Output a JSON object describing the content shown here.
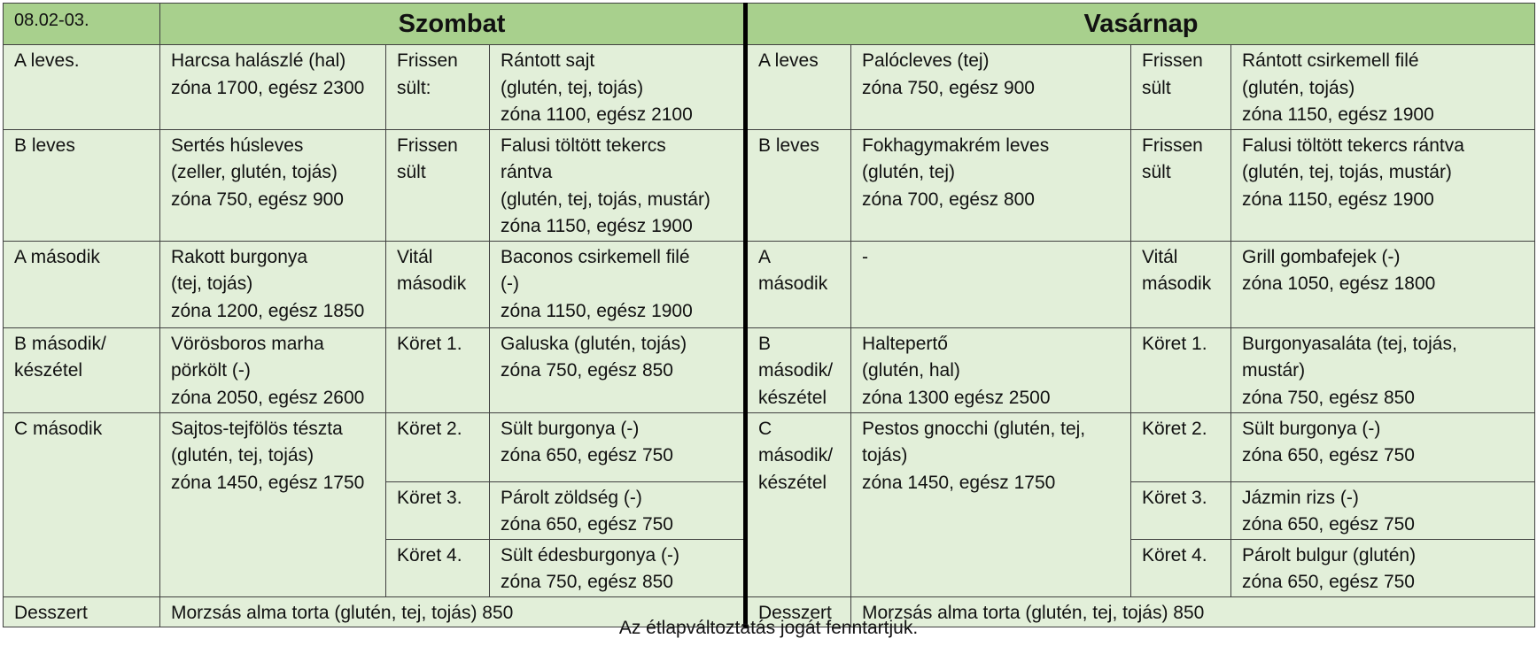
{
  "date": "08.02-03.",
  "days": [
    "Szombat",
    "Vasárnap"
  ],
  "rows": {
    "a_leves": {
      "sat_label": "A leves.",
      "sat_dish": [
        "Harcsa halászlé (hal)",
        "zóna 1700, egész 2300"
      ],
      "sat_side_label": [
        "Frissen",
        "sült:"
      ],
      "sat_side": [
        "Rántott sajt",
        "(glutén, tej, tojás)",
        "zóna 1100, egész 2100"
      ],
      "sun_label": "A leves",
      "sun_dish": [
        "Palócleves (tej)",
        "zóna 750, egész 900"
      ],
      "sun_side_label": [
        "Frissen",
        "sült"
      ],
      "sun_side": [
        "Rántott csirkemell filé",
        "(glutén, tojás)",
        "zóna 1150, egész 1900"
      ]
    },
    "b_leves": {
      "sat_label": "B leves",
      "sat_dish": [
        "Sertés húsleves",
        "(zeller, glutén, tojás)",
        "zóna 750, egész 900"
      ],
      "sat_side_label": [
        "Frissen",
        "sült"
      ],
      "sat_side": [
        "Falusi töltött tekercs",
        "rántva",
        "(glutén, tej, tojás, mustár)",
        "zóna 1150, egész 1900"
      ],
      "sun_label": "B leves",
      "sun_dish": [
        "Fokhagymakrém leves",
        "(glutén, tej)",
        "zóna 700, egész 800"
      ],
      "sun_side_label": [
        "Frissen",
        "sült"
      ],
      "sun_side": [
        "Falusi töltött tekercs rántva",
        "(glutén, tej, tojás, mustár)",
        "zóna 1150, egész 1900"
      ]
    },
    "a_masodik": {
      "sat_label": "A második",
      "sat_dish": [
        "Rakott burgonya",
        "(tej, tojás)",
        "zóna 1200, egész 1850"
      ],
      "sat_side_label": [
        "Vitál",
        "második"
      ],
      "sat_side": [
        "Baconos csirkemell filé",
        "(-)",
        "zóna 1150, egész 1900"
      ],
      "sun_label": [
        "A",
        "második"
      ],
      "sun_dish": [
        "-"
      ],
      "sun_side_label": [
        "Vitál",
        "második"
      ],
      "sun_side": [
        "Grill gombafejek (-)",
        "zóna 1050, egész 1800"
      ]
    },
    "b_masodik": {
      "sat_label": [
        "B második/",
        "készétel"
      ],
      "sat_dish": [
        "Vörösboros marha",
        "pörkölt (-)",
        "zóna 2050, egész 2600"
      ],
      "sat_side_label": "Köret 1.",
      "sat_side": [
        "Galuska (glutén, tojás)",
        "zóna 750, egész 850"
      ],
      "sun_label": [
        "B",
        "második/",
        "készétel"
      ],
      "sun_dish": [
        "Haltepertő",
        "(glutén, hal)",
        "zóna 1300 egész 2500"
      ],
      "sun_side_label": "Köret 1.",
      "sun_side": [
        "Burgonyasaláta (tej, tojás,",
        "mustár)",
        "zóna 750, egész 850"
      ]
    },
    "c_masodik": {
      "sat_label": "C második",
      "sat_dish": [
        "Sajtos-tejfölös tészta",
        "(glutén, tej, tojás)",
        "zóna 1450, egész 1750"
      ],
      "sun_label": [
        "C",
        "második/",
        "készétel"
      ],
      "sun_dish": [
        "Pestos gnocchi (glutén, tej,",
        "tojás)",
        "zóna 1450, egész 1750"
      ],
      "koret2": {
        "label": "Köret 2.",
        "sat": [
          "Sült burgonya (-)",
          "zóna 650, egész 750"
        ],
        "sun": [
          "Sült burgonya (-)",
          "zóna 650, egész 750"
        ]
      },
      "koret3": {
        "label": "Köret 3.",
        "sat": [
          "Párolt zöldség (-)",
          "zóna 650, egész 750"
        ],
        "sun": [
          "Jázmin rizs (-)",
          "zóna 650, egész 750"
        ]
      },
      "koret4": {
        "label": "Köret 4.",
        "sat": [
          "Sült édesburgonya (-)",
          "zóna 750, egész 850"
        ],
        "sun": [
          "Párolt bulgur (glutén)",
          "zóna 650, egész 750"
        ]
      }
    },
    "desszert": {
      "label": "Desszert",
      "sat": "Morzsás alma torta (glutén, tej, tojás) 850",
      "sun": "Morzsás alma torta (glutén, tej, tojás) 850"
    }
  },
  "footer": "Az étlapváltoztatás jogát fenntartjuk."
}
